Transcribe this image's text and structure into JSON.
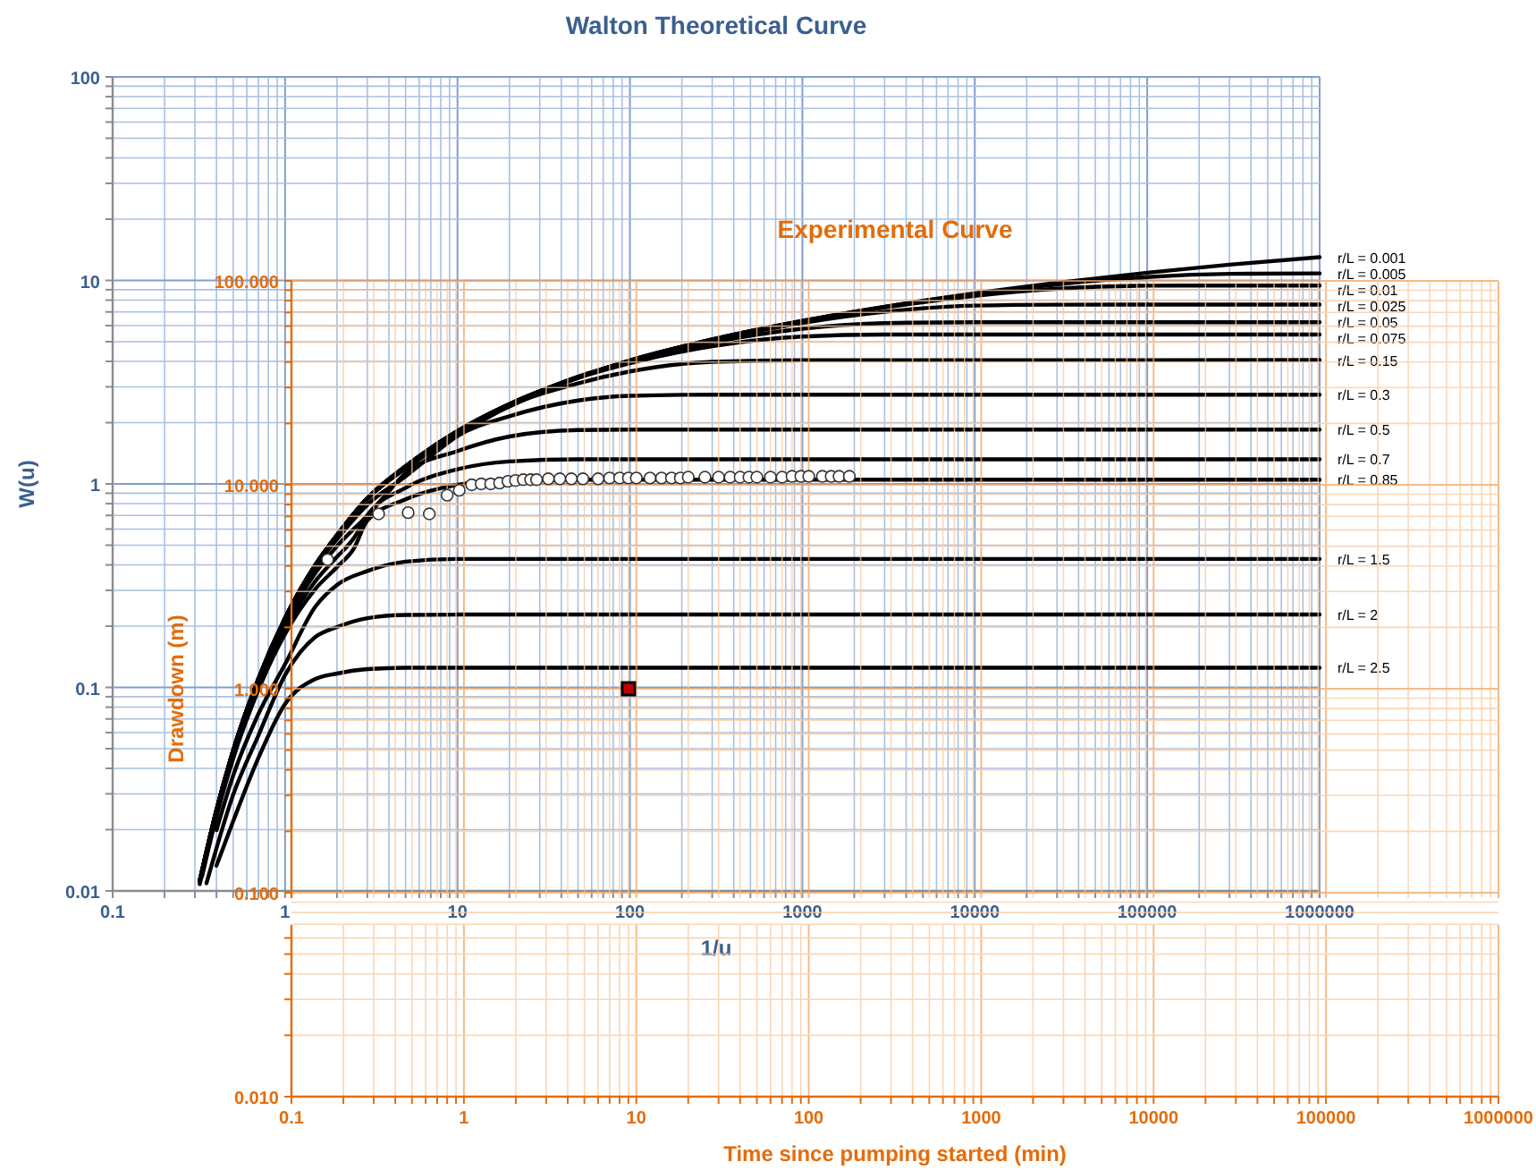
{
  "chart_data": [
    {
      "type": "line",
      "title": "Walton Theoretical Curve",
      "xlabel": "1/u",
      "ylabel": "W(u)",
      "log": "xy",
      "grid": true,
      "marker": "none",
      "line_style": "solid",
      "xlim": [
        0.1,
        1000000
      ],
      "ylim": [
        0.01,
        100
      ],
      "xticks": [
        0.1,
        {
          "value": 0.2,
          "label": null
        },
        {
          "value": 0.3,
          "label": null
        },
        {
          "value": 0.4,
          "label": null
        },
        {
          "value": 0.5,
          "label": null
        },
        {
          "value": 0.6,
          "label": null
        },
        {
          "value": 0.7,
          "label": null
        },
        {
          "value": 0.8,
          "label": null
        },
        {
          "value": 0.9,
          "label": null
        },
        1,
        {
          "value": 2,
          "label": null
        },
        {
          "value": 3,
          "label": null
        },
        {
          "value": 4,
          "label": null
        },
        {
          "value": 5,
          "label": null
        },
        {
          "value": 6,
          "label": null
        },
        {
          "value": 7,
          "label": null
        },
        {
          "value": 8,
          "label": null
        },
        {
          "value": 9,
          "label": null
        },
        10,
        {
          "value": 20,
          "label": null
        },
        {
          "value": 30,
          "label": null
        },
        {
          "value": 40,
          "label": null
        },
        {
          "value": 50,
          "label": null
        },
        {
          "value": 60,
          "label": null
        },
        {
          "value": 70,
          "label": null
        },
        {
          "value": 80,
          "label": null
        },
        {
          "value": 90,
          "label": null
        },
        100,
        {
          "value": 200,
          "label": null
        },
        {
          "value": 300,
          "label": null
        },
        {
          "value": 400,
          "label": null
        },
        {
          "value": 500,
          "label": null
        },
        {
          "value": 600,
          "label": null
        },
        {
          "value": 700,
          "label": null
        },
        {
          "value": 800,
          "label": null
        },
        {
          "value": 900,
          "label": null
        },
        1000,
        {
          "value": 2000,
          "label": null
        },
        {
          "value": 3000,
          "label": null
        },
        {
          "value": 4000,
          "label": null
        },
        {
          "value": 5000,
          "label": null
        },
        {
          "value": 6000,
          "label": null
        },
        {
          "value": 7000,
          "label": null
        },
        {
          "value": 8000,
          "label": null
        },
        {
          "value": 9000,
          "label": null
        },
        10000,
        {
          "value": 20000,
          "label": null
        },
        {
          "value": 30000,
          "label": null
        },
        {
          "value": 40000,
          "label": null
        },
        {
          "value": 50000,
          "label": null
        },
        {
          "value": 60000,
          "label": null
        },
        {
          "value": 70000,
          "label": null
        },
        {
          "value": 80000,
          "label": null
        },
        {
          "value": 90000,
          "label": null
        },
        100000,
        {
          "value": 200000,
          "label": null
        },
        {
          "value": 300000,
          "label": null
        },
        {
          "value": 400000,
          "label": null
        },
        {
          "value": 500000,
          "label": null
        },
        {
          "value": 600000,
          "label": null
        },
        {
          "value": 700000,
          "label": null
        },
        {
          "value": 800000,
          "label": null
        },
        {
          "value": 900000,
          "label": null
        },
        1000000
      ],
      "yticks": [
        0.01,
        {
          "value": 0.02,
          "label": null
        },
        {
          "value": 0.03,
          "label": null
        },
        {
          "value": 0.04,
          "label": null
        },
        {
          "value": 0.05,
          "label": null
        },
        {
          "value": 0.06,
          "label": null
        },
        {
          "value": 0.07,
          "label": null
        },
        {
          "value": 0.08,
          "label": null
        },
        {
          "value": 0.09,
          "label": null
        },
        0.1,
        {
          "value": 0.2,
          "label": null
        },
        {
          "value": 0.3,
          "label": null
        },
        {
          "value": 0.4,
          "label": null
        },
        {
          "value": 0.5,
          "label": null
        },
        {
          "value": 0.6,
          "label": null
        },
        {
          "value": 0.7,
          "label": null
        },
        {
          "value": 0.8,
          "label": null
        },
        {
          "value": 0.9,
          "label": null
        },
        1,
        {
          "value": 2,
          "label": null
        },
        {
          "value": 3,
          "label": null
        },
        {
          "value": 4,
          "label": null
        },
        {
          "value": 5,
          "label": null
        },
        {
          "value": 6,
          "label": null
        },
        {
          "value": 7,
          "label": null
        },
        {
          "value": 8,
          "label": null
        },
        {
          "value": 9,
          "label": null
        },
        10,
        {
          "value": 20,
          "label": null
        },
        {
          "value": 30,
          "label": null
        },
        {
          "value": 40,
          "label": null
        },
        {
          "value": 50,
          "label": null
        },
        {
          "value": 60,
          "label": null
        },
        {
          "value": 70,
          "label": null
        },
        {
          "value": 80,
          "label": null
        },
        {
          "value": 90,
          "label": null
        },
        100
      ],
      "series": [
        {
          "name": "r/L = 0.001",
          "color": "#000000",
          "x": [
            0.32,
            0.4,
            0.5,
            0.7,
            1,
            1.5,
            2,
            3,
            5,
            10,
            20,
            50,
            100,
            300,
            1000,
            3000,
            10000,
            30000,
            100000,
            300000,
            1000000
          ],
          "values": [
            0.0112,
            0.0249,
            0.0489,
            0.11,
            0.219,
            0.4,
            0.56,
            0.85,
            1.22,
            1.82,
            2.47,
            3.35,
            4.04,
            5.13,
            6.33,
            7.43,
            8.64,
            9.73,
            10.91,
            11.96,
            13.01
          ]
        },
        {
          "name": "r/L = 0.005",
          "color": "#000000",
          "x": [
            0.32,
            0.4,
            0.5,
            0.7,
            1,
            1.5,
            2,
            3,
            5,
            10,
            20,
            50,
            100,
            300,
            1000,
            3000,
            10000,
            30000,
            100000,
            300000,
            1000000
          ],
          "values": [
            0.0112,
            0.0249,
            0.0489,
            0.11,
            0.219,
            0.4,
            0.56,
            0.85,
            1.22,
            1.82,
            2.47,
            3.35,
            4.04,
            5.12,
            6.33,
            7.41,
            8.57,
            9.56,
            10.39,
            10.77,
            10.83
          ]
        },
        {
          "name": "r/L = 0.01",
          "color": "#000000",
          "x": [
            0.32,
            0.4,
            0.5,
            0.7,
            1,
            1.5,
            2,
            3,
            5,
            10,
            20,
            50,
            100,
            300,
            1000,
            3000,
            10000,
            30000,
            100000,
            300000,
            1000000
          ],
          "values": [
            0.0112,
            0.0249,
            0.0489,
            0.11,
            0.219,
            0.4,
            0.56,
            0.85,
            1.22,
            1.82,
            2.47,
            3.35,
            4.03,
            5.13,
            6.3,
            7.35,
            8.4,
            9.1,
            9.42,
            9.44,
            9.44
          ]
        },
        {
          "name": "r/L = 0.025",
          "color": "#000000",
          "x": [
            0.32,
            0.4,
            0.5,
            0.7,
            1,
            1.5,
            2,
            3,
            5,
            10,
            20,
            50,
            100,
            300,
            1000,
            3000,
            10000,
            30000,
            100000,
            1000000
          ],
          "values": [
            0.0112,
            0.0249,
            0.0489,
            0.11,
            0.219,
            0.4,
            0.56,
            0.85,
            1.22,
            1.82,
            2.46,
            3.32,
            4.05,
            5.09,
            6.18,
            7.01,
            7.52,
            7.6,
            7.61,
            7.61
          ]
        },
        {
          "name": "r/L = 0.05",
          "color": "#000000",
          "x": [
            0.32,
            0.4,
            0.5,
            0.7,
            1,
            1.5,
            2,
            3,
            5,
            10,
            20,
            50,
            100,
            300,
            1000,
            3000,
            10000,
            1000000
          ],
          "values": [
            0.0112,
            0.0249,
            0.0489,
            0.11,
            0.219,
            0.4,
            0.56,
            0.85,
            1.22,
            1.81,
            2.44,
            3.37,
            3.99,
            4.96,
            5.79,
            6.17,
            6.23,
            6.23
          ]
        },
        {
          "name": "r/L = 0.075",
          "color": "#000000",
          "x": [
            0.32,
            0.4,
            0.5,
            0.7,
            1,
            1.5,
            2,
            3,
            5,
            10,
            20,
            50,
            100,
            300,
            1000,
            3000,
            1000000
          ],
          "values": [
            0.0112,
            0.0249,
            0.0489,
            0.11,
            0.219,
            0.4,
            0.56,
            0.85,
            1.21,
            1.79,
            2.4,
            3.32,
            3.92,
            4.75,
            5.3,
            5.42,
            5.42
          ]
        },
        {
          "name": "r/L = 0.15",
          "color": "#000000",
          "x": [
            0.32,
            0.4,
            0.5,
            0.7,
            1,
            1.5,
            2,
            3,
            5,
            10,
            20,
            50,
            100,
            300,
            1000,
            1000000
          ],
          "values": [
            0.0112,
            0.0249,
            0.0489,
            0.11,
            0.218,
            0.4,
            0.55,
            0.84,
            1.19,
            1.72,
            2.41,
            3.12,
            3.57,
            3.98,
            4.05,
            4.06
          ]
        },
        {
          "name": "r/L = 0.3",
          "color": "#000000",
          "x": [
            0.32,
            0.4,
            0.5,
            0.7,
            1,
            1.5,
            2,
            3,
            5,
            7,
            10,
            20,
            50,
            100,
            300,
            1000000
          ],
          "values": [
            0.0111,
            0.0246,
            0.0482,
            0.108,
            0.214,
            0.39,
            0.535,
            0.79,
            1.09,
            1.37,
            1.72,
            2.15,
            2.57,
            2.71,
            2.745,
            2.745
          ]
        },
        {
          "name": "r/L = 0.5",
          "color": "#000000",
          "x": [
            0.32,
            0.4,
            0.5,
            0.7,
            1,
            1.5,
            2,
            3,
            4,
            5,
            10,
            20,
            50,
            100,
            1000000
          ],
          "values": [
            0.011,
            0.0244,
            0.0474,
            0.105,
            0.206,
            0.365,
            0.494,
            0.7,
            0.92,
            1.13,
            1.45,
            1.71,
            1.84,
            1.849,
            1.849
          ]
        },
        {
          "name": "r/L = 0.7",
          "color": "#000000",
          "x": [
            0.32,
            0.4,
            0.5,
            0.7,
            1,
            1.5,
            2,
            2.5,
            3,
            5,
            10,
            20,
            50,
            1000000
          ],
          "values": [
            0.0108,
            0.0237,
            0.046,
            0.101,
            0.194,
            0.333,
            0.438,
            0.54,
            0.7,
            0.957,
            1.18,
            1.29,
            1.32,
            1.321
          ]
        },
        {
          "name": "r/L = 0.85",
          "color": "#000000",
          "x": [
            0.33,
            0.4,
            0.5,
            0.7,
            1,
            1.5,
            2,
            2.5,
            3,
            5,
            10,
            20,
            50,
            1000000
          ],
          "values": [
            0.0118,
            0.0232,
            0.0447,
            0.097,
            0.183,
            0.305,
            0.39,
            0.48,
            0.66,
            0.84,
            0.99,
            1.044,
            1.05,
            1.05
          ]
        },
        {
          "name": "r/L = 1.5",
          "color": "#000000",
          "x": [
            0.4,
            0.5,
            0.7,
            1,
            1.5,
            2,
            3,
            5,
            10,
            1000000
          ],
          "values": [
            0.0199,
            0.0369,
            0.074,
            0.13,
            0.25,
            0.319,
            0.373,
            0.415,
            0.428,
            0.428
          ]
        },
        {
          "name": "r/L = 2",
          "color": "#000000",
          "x": [
            0.35,
            0.5,
            0.7,
            1,
            1.5,
            2,
            3,
            5,
            10,
            1000000
          ],
          "values": [
            0.0109,
            0.0297,
            0.058,
            0.115,
            0.177,
            0.198,
            0.219,
            0.227,
            0.228,
            0.228
          ]
        },
        {
          "name": "r/L = 2.5",
          "color": "#000000",
          "x": [
            0.4,
            0.5,
            0.7,
            1,
            1.5,
            2,
            3,
            5,
            1000000
          ],
          "values": [
            0.0133,
            0.022,
            0.045,
            0.083,
            0.11,
            0.117,
            0.123,
            0.125,
            0.125
          ]
        }
      ]
    },
    {
      "type": "scatter",
      "title": "Experimental Curve",
      "xlabel": "Time since pumping started (min)",
      "ylabel": "Drawdown (m)",
      "log": "xy",
      "grid": true,
      "xlim": [
        0.1,
        1000000
      ],
      "ylim": [
        0.01,
        100
      ],
      "xticks": [
        0.1,
        {
          "value": 0.2,
          "label": null
        },
        {
          "value": 0.3,
          "label": null
        },
        {
          "value": 0.4,
          "label": null
        },
        {
          "value": 0.5,
          "label": null
        },
        {
          "value": 0.6,
          "label": null
        },
        {
          "value": 0.7,
          "label": null
        },
        {
          "value": 0.8,
          "label": null
        },
        {
          "value": 0.9,
          "label": null
        },
        1,
        {
          "value": 2,
          "label": null
        },
        {
          "value": 3,
          "label": null
        },
        {
          "value": 4,
          "label": null
        },
        {
          "value": 5,
          "label": null
        },
        {
          "value": 6,
          "label": null
        },
        {
          "value": 7,
          "label": null
        },
        {
          "value": 8,
          "label": null
        },
        {
          "value": 9,
          "label": null
        },
        10,
        {
          "value": 20,
          "label": null
        },
        {
          "value": 30,
          "label": null
        },
        {
          "value": 40,
          "label": null
        },
        {
          "value": 50,
          "label": null
        },
        {
          "value": 60,
          "label": null
        },
        {
          "value": 70,
          "label": null
        },
        {
          "value": 80,
          "label": null
        },
        {
          "value": 90,
          "label": null
        },
        100,
        {
          "value": 200,
          "label": null
        },
        {
          "value": 300,
          "label": null
        },
        {
          "value": 400,
          "label": null
        },
        {
          "value": 500,
          "label": null
        },
        {
          "value": 600,
          "label": null
        },
        {
          "value": 700,
          "label": null
        },
        {
          "value": 800,
          "label": null
        },
        {
          "value": 900,
          "label": null
        },
        1000,
        {
          "value": 2000,
          "label": null
        },
        {
          "value": 3000,
          "label": null
        },
        {
          "value": 4000,
          "label": null
        },
        {
          "value": 5000,
          "label": null
        },
        {
          "value": 6000,
          "label": null
        },
        {
          "value": 7000,
          "label": null
        },
        {
          "value": 8000,
          "label": null
        },
        {
          "value": 9000,
          "label": null
        },
        10000,
        {
          "value": 20000,
          "label": null
        },
        {
          "value": 30000,
          "label": null
        },
        {
          "value": 40000,
          "label": null
        },
        {
          "value": 50000,
          "label": null
        },
        {
          "value": 60000,
          "label": null
        },
        {
          "value": 70000,
          "label": null
        },
        {
          "value": 80000,
          "label": null
        },
        {
          "value": 90000,
          "label": null
        },
        100000,
        {
          "value": 200000,
          "label": null
        },
        {
          "value": 300000,
          "label": null
        },
        {
          "value": 400000,
          "label": null
        },
        {
          "value": 500000,
          "label": null
        },
        {
          "value": 600000,
          "label": null
        },
        {
          "value": 700000,
          "label": null
        },
        {
          "value": 800000,
          "label": null
        },
        {
          "value": 900000,
          "label": null
        },
        1000000
      ],
      "yticks": [
        {
          "value": 0.01,
          "label": "0.010"
        },
        {
          "value": 0.02,
          "label": null
        },
        {
          "value": 0.03,
          "label": null
        },
        {
          "value": 0.04,
          "label": null
        },
        {
          "value": 0.05,
          "label": null
        },
        {
          "value": 0.06,
          "label": null
        },
        {
          "value": 0.07,
          "label": null
        },
        {
          "value": 0.08,
          "label": null
        },
        {
          "value": 0.09,
          "label": null
        },
        {
          "value": 0.1,
          "label": "0.100"
        },
        {
          "value": 0.2,
          "label": null
        },
        {
          "value": 0.3,
          "label": null
        },
        {
          "value": 0.4,
          "label": null
        },
        {
          "value": 0.5,
          "label": null
        },
        {
          "value": 0.6,
          "label": null
        },
        {
          "value": 0.7,
          "label": null
        },
        {
          "value": 0.8,
          "label": null
        },
        {
          "value": 0.9,
          "label": null
        },
        {
          "value": 1,
          "label": "1.000"
        },
        {
          "value": 2,
          "label": null
        },
        {
          "value": 3,
          "label": null
        },
        {
          "value": 4,
          "label": null
        },
        {
          "value": 5,
          "label": null
        },
        {
          "value": 6,
          "label": null
        },
        {
          "value": 7,
          "label": null
        },
        {
          "value": 8,
          "label": null
        },
        {
          "value": 9,
          "label": null
        },
        {
          "value": 10,
          "label": "10.000"
        },
        {
          "value": 20,
          "label": null
        },
        {
          "value": 30,
          "label": null
        },
        {
          "value": 40,
          "label": null
        },
        {
          "value": 50,
          "label": null
        },
        {
          "value": 60,
          "label": null
        },
        {
          "value": 70,
          "label": null
        },
        {
          "value": 80,
          "label": null
        },
        {
          "value": 90,
          "label": null
        },
        {
          "value": 100,
          "label": "100.000"
        }
      ],
      "series": [
        {
          "color": "#ffffff",
          "marker": "circle",
          "x": [
            0.162,
            0.32,
            0.475,
            0.63,
            0.8,
            0.94,
            1.11,
            1.26,
            1.43,
            1.61,
            1.8,
            1.99,
            2.21,
            2.44,
            2.64,
            3.09,
            3.6,
            4.2,
            4.9,
            6,
            7,
            8,
            9,
            10,
            12,
            14,
            16,
            18,
            20,
            25,
            30,
            35,
            40,
            45,
            50,
            60,
            70,
            80,
            90,
            100,
            120,
            135,
            150,
            172
          ],
          "values": [
            4.3,
            7.2,
            7.3,
            7.2,
            8.9,
            9.4,
            10.0,
            10.1,
            10.1,
            10.2,
            10.4,
            10.5,
            10.6,
            10.6,
            10.6,
            10.7,
            10.7,
            10.7,
            10.7,
            10.7,
            10.8,
            10.8,
            10.8,
            10.8,
            10.8,
            10.8,
            10.8,
            10.8,
            10.9,
            10.9,
            10.9,
            10.9,
            10.9,
            10.9,
            10.9,
            10.9,
            10.9,
            11.0,
            11.0,
            11.0,
            11.0,
            11.0,
            11.0,
            11.0
          ]
        },
        {
          "color": "#c00000",
          "marker": "square",
          "x": [
            9
          ],
          "values": [
            1.0
          ]
        }
      ]
    }
  ]
}
